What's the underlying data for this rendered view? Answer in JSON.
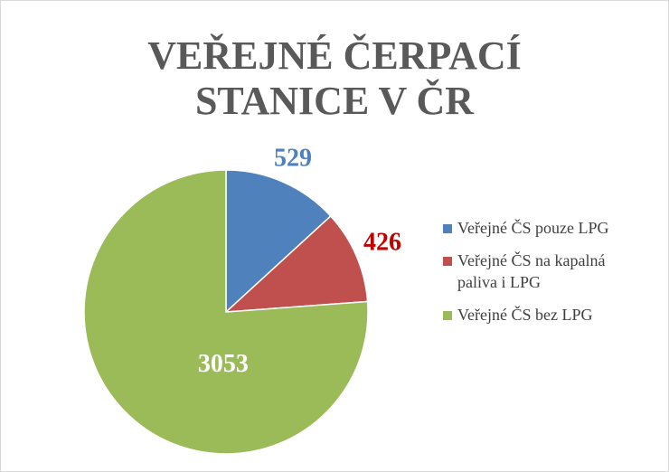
{
  "chart_data": {
    "type": "pie",
    "title": [
      "VEŘEJNÉ ČERPACÍ",
      "STANICE V ČR"
    ],
    "categories": [
      "Veřejné ČS pouze LPG",
      "Veřejné ČS na kapalná paliva i LPG",
      "Veřejné ČS bez LPG"
    ],
    "values": [
      529,
      426,
      3053
    ],
    "colors": [
      "#4f81bd",
      "#c0504d",
      "#9bbb59"
    ],
    "label_colors": [
      "#4f81bd",
      "#c00000",
      "#ffffff"
    ],
    "legend": "right"
  }
}
